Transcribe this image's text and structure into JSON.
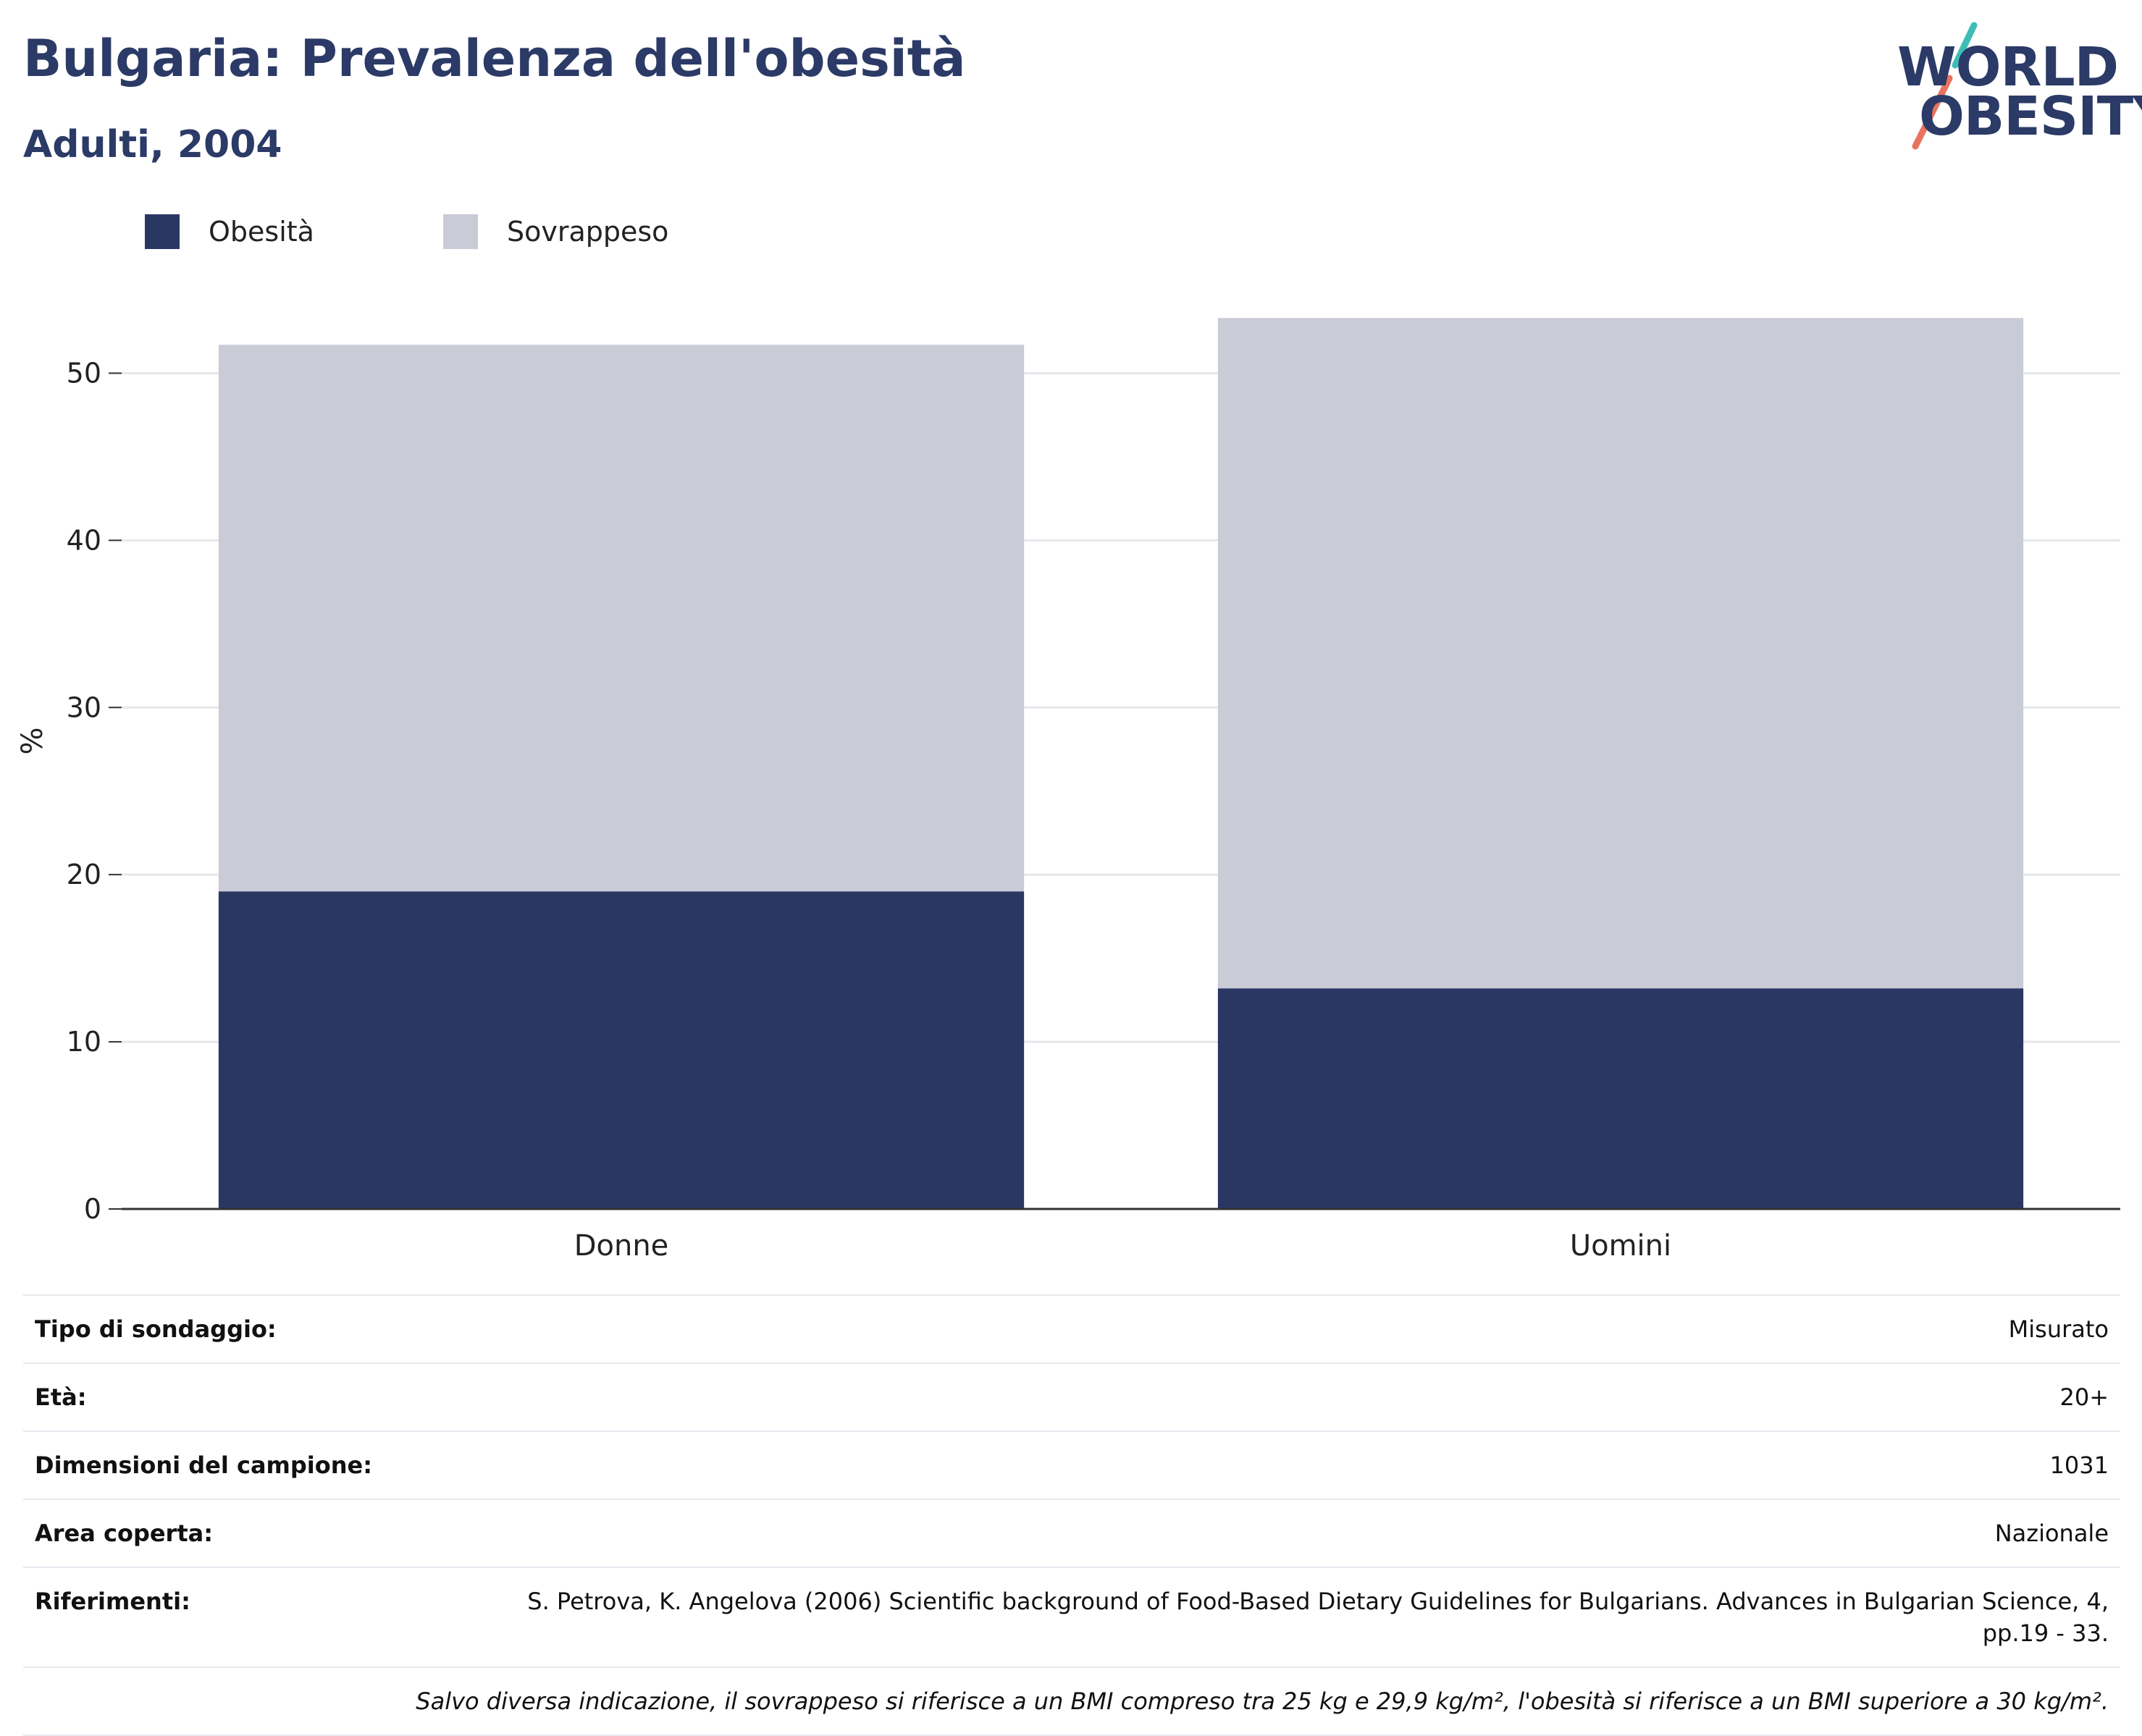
{
  "header": {
    "title": "Bulgaria: Prevalenza dell'obesità",
    "subtitle": "Adulti, 2004",
    "logo_line1": "WORLD",
    "logo_line2": "OBESITY"
  },
  "colors": {
    "obesity": "#2b3763",
    "overweight": "#c9cbd7",
    "accent_teal": "#3dbdb5",
    "accent_coral": "#e8735f",
    "brand": "#2b3a66"
  },
  "chart_data": {
    "type": "bar",
    "stacked": true,
    "categories": [
      "Donne",
      "Uomini"
    ],
    "series": [
      {
        "name": "Obesità",
        "values": [
          19.0,
          13.2
        ]
      },
      {
        "name": "Sovrappeso",
        "values": [
          32.7,
          40.1
        ]
      }
    ],
    "xlabel": "",
    "ylabel": "%",
    "ylim": [
      0,
      55
    ],
    "yticks": [
      0,
      10,
      20,
      30,
      40,
      50
    ],
    "grid": true,
    "legend_position": "top-left"
  },
  "info": {
    "rows": [
      {
        "key": "Tipo di sondaggio:",
        "value": "Misurato"
      },
      {
        "key": "Età:",
        "value": "20+"
      },
      {
        "key": "Dimensioni del campione:",
        "value": "1031"
      },
      {
        "key": "Area coperta:",
        "value": "Nazionale"
      },
      {
        "key": "Riferimenti:",
        "value": "S. Petrova, K. Angelova (2006) Scientific background of Food-Based Dietary Guidelines for Bulgarians. Advances in Bulgarian Science, 4, pp.19 - 33."
      }
    ],
    "note": "Salvo diversa indicazione, il sovrappeso si riferisce a un BMI compreso tra 25 kg e 29,9 kg/m², l'obesità si riferisce a un BMI superiore a 30 kg/m²."
  }
}
